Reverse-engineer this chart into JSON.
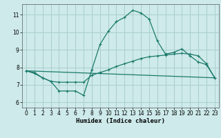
{
  "xlabel": "Humidex (Indice chaleur)",
  "background_color": "#ceeaea",
  "grid_color": "#aacece",
  "line_color": "#1a7a6a",
  "x_ticks": [
    0,
    1,
    2,
    3,
    4,
    5,
    6,
    7,
    8,
    9,
    10,
    11,
    12,
    13,
    14,
    15,
    16,
    17,
    18,
    19,
    20,
    21,
    22,
    23
  ],
  "yticks": [
    6,
    7,
    8,
    9,
    10,
    11
  ],
  "ylim": [
    5.7,
    11.6
  ],
  "xlim": [
    -0.5,
    23.5
  ],
  "line1_x": [
    0,
    1,
    2,
    3,
    4,
    5,
    6,
    7,
    8,
    9,
    10,
    11,
    12,
    13,
    14,
    15,
    16,
    17,
    18,
    19,
    20,
    21,
    22,
    23
  ],
  "line1_y": [
    7.8,
    7.7,
    7.4,
    7.2,
    6.65,
    6.65,
    6.65,
    6.4,
    7.85,
    9.3,
    10.05,
    10.6,
    10.85,
    11.25,
    11.1,
    10.75,
    9.5,
    8.75,
    8.85,
    9.05,
    8.65,
    8.3,
    8.15,
    7.4
  ],
  "line2_x": [
    0,
    1,
    2,
    3,
    4,
    5,
    6,
    7,
    8,
    9,
    10,
    11,
    12,
    13,
    14,
    15,
    16,
    17,
    18,
    19,
    20,
    21,
    22,
    23
  ],
  "line2_y": [
    7.8,
    7.65,
    7.4,
    7.2,
    7.15,
    7.15,
    7.15,
    7.15,
    7.55,
    7.7,
    7.85,
    8.05,
    8.2,
    8.35,
    8.5,
    8.6,
    8.65,
    8.7,
    8.75,
    8.8,
    8.75,
    8.65,
    8.2,
    7.4
  ],
  "line3_x": [
    0,
    23
  ],
  "line3_y": [
    7.8,
    7.4
  ]
}
